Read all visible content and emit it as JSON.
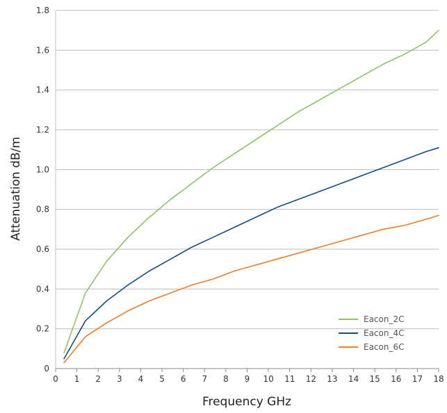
{
  "chart_data": {
    "type": "line",
    "title": "",
    "xlabel": "Frequency GHz",
    "ylabel": "Attenuation dB/m",
    "xlim": [
      0,
      18
    ],
    "ylim": [
      0,
      1.8
    ],
    "x_ticks": [
      "0",
      "1",
      "2",
      "3",
      "4",
      "5",
      "6",
      "7",
      "8",
      "9",
      "10",
      "11",
      "12",
      "13",
      "14",
      "15",
      "16",
      "17",
      "18"
    ],
    "y_ticks": [
      "0",
      "0.2",
      "0.4",
      "0.6",
      "0.8",
      "1.0",
      "1.2",
      "1.4",
      "1.6",
      "1.8"
    ],
    "grid": "horizontal",
    "legend_position": "bottom-right",
    "series": [
      {
        "name": "Eacon_2C",
        "color": "#8dc363",
        "x": [
          0.4,
          1.4,
          2.4,
          3.4,
          4.4,
          5.4,
          6.4,
          7.4,
          8.4,
          9.4,
          10.4,
          11.4,
          12.4,
          13.4,
          14.4,
          15.4,
          16.4,
          17.4,
          18
        ],
        "y": [
          0.08,
          0.38,
          0.54,
          0.66,
          0.76,
          0.85,
          0.93,
          1.01,
          1.08,
          1.15,
          1.22,
          1.29,
          1.35,
          1.41,
          1.47,
          1.53,
          1.58,
          1.64,
          1.7
        ]
      },
      {
        "name": "Eacon_4C",
        "color": "#0e4c8c",
        "x": [
          0.4,
          1.4,
          2.4,
          3.4,
          4.4,
          5.4,
          6.4,
          7.4,
          8.4,
          9.4,
          10.4,
          11.4,
          12.4,
          13.4,
          14.4,
          15.4,
          16.4,
          17.4,
          18
        ],
        "y": [
          0.05,
          0.24,
          0.34,
          0.42,
          0.49,
          0.55,
          0.61,
          0.66,
          0.71,
          0.76,
          0.81,
          0.85,
          0.89,
          0.93,
          0.97,
          1.01,
          1.05,
          1.09,
          1.11
        ]
      },
      {
        "name": "Eacon_6C",
        "color": "#ee7d25",
        "x": [
          0.4,
          1.4,
          2.4,
          3.4,
          4.4,
          5.4,
          6.4,
          7.4,
          8.4,
          9.4,
          10.4,
          11.4,
          12.4,
          13.4,
          14.4,
          15.4,
          16.4,
          17.4,
          18
        ],
        "y": [
          0.03,
          0.16,
          0.23,
          0.29,
          0.34,
          0.38,
          0.42,
          0.45,
          0.49,
          0.52,
          0.55,
          0.58,
          0.61,
          0.64,
          0.67,
          0.7,
          0.72,
          0.75,
          0.77
        ]
      }
    ]
  }
}
